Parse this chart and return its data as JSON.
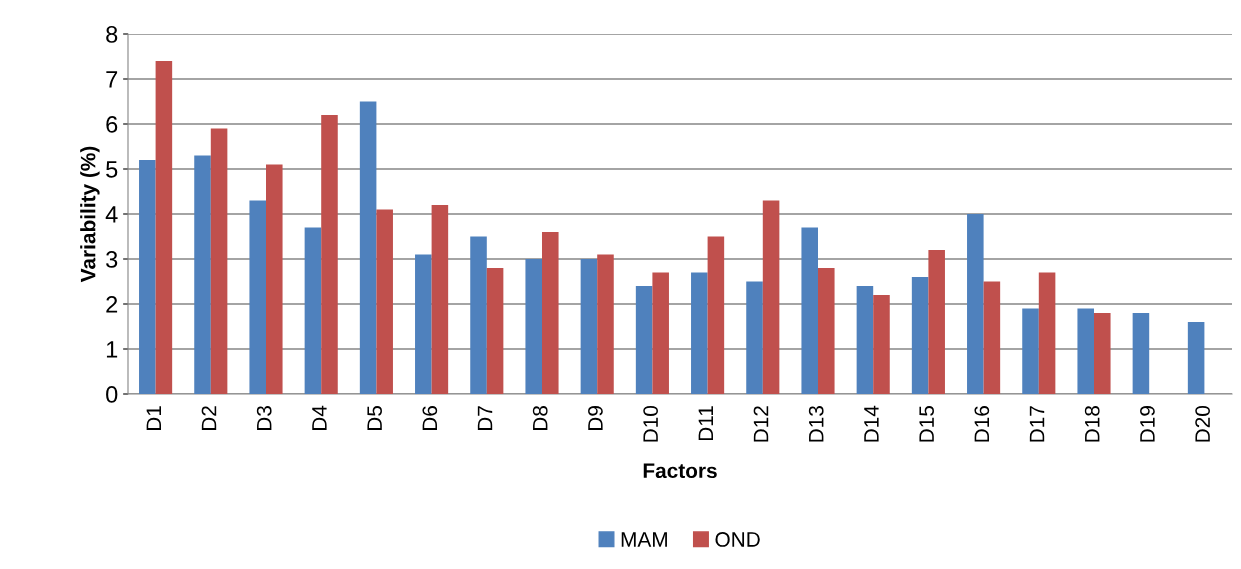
{
  "chart_data": {
    "type": "bar",
    "xlabel": "Factors",
    "ylabel": "Variability (%)",
    "categories": [
      "D1",
      "D2",
      "D3",
      "D4",
      "D5",
      "D6",
      "D7",
      "D8",
      "D9",
      "D10",
      "D11",
      "D12",
      "D13",
      "D14",
      "D15",
      "D16",
      "D17",
      "D18",
      "D19",
      "D20"
    ],
    "series": [
      {
        "name": "MAM",
        "color": "#4f81bd",
        "values": [
          5.2,
          5.3,
          4.3,
          3.7,
          6.5,
          3.1,
          3.5,
          3.0,
          3.0,
          2.4,
          2.7,
          2.5,
          3.7,
          2.4,
          2.6,
          4.0,
          1.9,
          1.9,
          1.8,
          1.6
        ]
      },
      {
        "name": "OND",
        "color": "#c0504d",
        "values": [
          7.4,
          5.9,
          5.1,
          6.2,
          4.1,
          4.2,
          2.8,
          3.6,
          3.1,
          2.7,
          3.5,
          4.3,
          2.8,
          2.2,
          3.2,
          2.5,
          2.7,
          1.8,
          null,
          null
        ]
      }
    ],
    "ylim": [
      0,
      8
    ],
    "yticks": [
      0,
      1,
      2,
      3,
      4,
      5,
      6,
      7,
      8
    ],
    "grid": "y",
    "legend": "bottom"
  }
}
